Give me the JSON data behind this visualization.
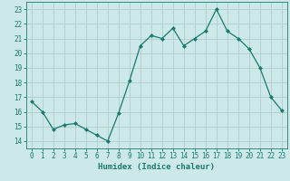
{
  "x": [
    0,
    1,
    2,
    3,
    4,
    5,
    6,
    7,
    8,
    9,
    10,
    11,
    12,
    13,
    14,
    15,
    16,
    17,
    18,
    19,
    20,
    21,
    22,
    23
  ],
  "y": [
    16.7,
    16.0,
    14.8,
    15.1,
    15.2,
    14.8,
    14.4,
    14.0,
    15.9,
    18.1,
    20.5,
    21.2,
    21.0,
    21.7,
    20.5,
    21.0,
    21.5,
    23.0,
    21.5,
    21.0,
    20.3,
    19.0,
    17.0,
    16.1
  ],
  "line_color": "#1a7a6e",
  "marker": "D",
  "marker_size": 2.0,
  "bg_color": "#cce8e8",
  "grid_color": "#b0cccc",
  "xlabel": "Humidex (Indice chaleur)",
  "xlim": [
    -0.5,
    23.5
  ],
  "ylim": [
    13.5,
    23.5
  ],
  "yticks": [
    14,
    15,
    16,
    17,
    18,
    19,
    20,
    21,
    22,
    23
  ],
  "xticks": [
    0,
    1,
    2,
    3,
    4,
    5,
    6,
    7,
    8,
    9,
    10,
    11,
    12,
    13,
    14,
    15,
    16,
    17,
    18,
    19,
    20,
    21,
    22,
    23
  ],
  "tick_color": "#1a7a6e",
  "label_color": "#1a7a6e",
  "axis_color": "#1a7a6e",
  "tick_fontsize": 5.5,
  "xlabel_fontsize": 6.5
}
